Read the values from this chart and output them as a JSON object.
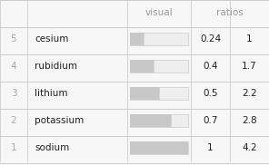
{
  "rows": [
    {
      "rank": "5",
      "name": "cesium",
      "visual": 0.24,
      "val": "0.24",
      "ratio": "1"
    },
    {
      "rank": "4",
      "name": "rubidium",
      "visual": 0.4,
      "val": "0.4",
      "ratio": "1.7"
    },
    {
      "rank": "3",
      "name": "lithium",
      "visual": 0.5,
      "val": "0.5",
      "ratio": "2.2"
    },
    {
      "rank": "2",
      "name": "potassium",
      "visual": 0.7,
      "val": "0.7",
      "ratio": "2.8"
    },
    {
      "rank": "1",
      "name": "sodium",
      "visual": 1.0,
      "val": "1",
      "ratio": "4.2"
    }
  ],
  "col_headers": [
    "visual",
    "ratios"
  ],
  "bg_color": "#f7f7f7",
  "header_color": "#999999",
  "rank_color": "#aaaaaa",
  "name_color": "#222222",
  "value_color": "#222222",
  "bar_bg_color": "#e8e8e8",
  "bar_fill_color": "#c8c8c8",
  "grid_color": "#cccccc",
  "font_size": 7.5
}
